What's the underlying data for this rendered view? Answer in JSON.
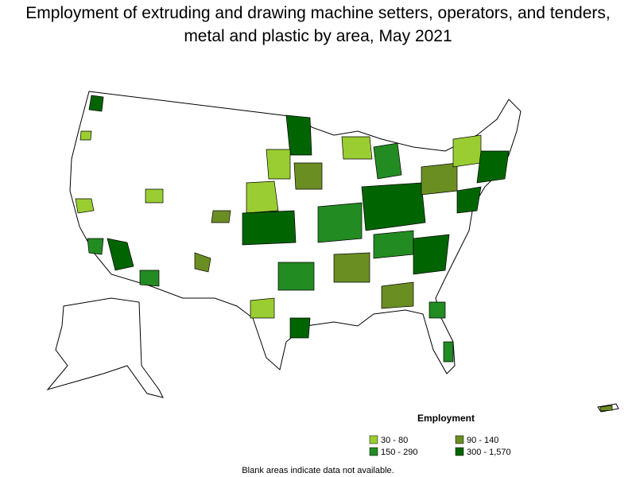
{
  "title": "Employment of extruding and drawing machine setters, operators, and tenders, metal and plastic by area, May 2021",
  "legend": {
    "title": "Employment",
    "items": [
      {
        "label": "30 - 80",
        "color": "#9acd32"
      },
      {
        "label": "90 - 140",
        "color": "#6b8e23"
      },
      {
        "label": "150 - 290",
        "color": "#228b22"
      },
      {
        "label": "300 - 1,570",
        "color": "#006400"
      }
    ]
  },
  "note": "Blank areas indicate data not available."
}
